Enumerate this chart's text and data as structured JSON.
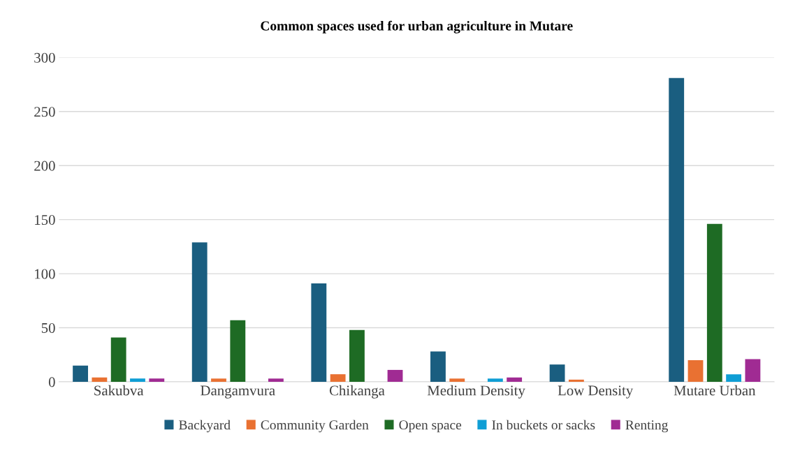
{
  "chart_data": {
    "type": "bar",
    "title": "Common spaces used for urban agriculture in Mutare",
    "categories": [
      "Sakubva",
      "Dangamvura",
      "Chikanga",
      "Medium Density",
      "Low Density",
      "Mutare Urban"
    ],
    "series": [
      {
        "name": "Backyard",
        "color": "#1a5e80",
        "values": [
          15,
          129,
          91,
          28,
          16,
          281
        ]
      },
      {
        "name": "Community Garden",
        "color": "#e97132",
        "values": [
          4,
          3,
          7,
          3,
          2,
          20
        ]
      },
      {
        "name": "Open space",
        "color": "#1e6b24",
        "values": [
          41,
          57,
          48,
          0,
          0,
          146
        ]
      },
      {
        "name": "In buckets or sacks",
        "color": "#0f9ed5",
        "values": [
          3,
          0,
          0,
          3,
          0,
          7
        ]
      },
      {
        "name": "Renting",
        "color": "#a02b93",
        "values": [
          3,
          3,
          11,
          4,
          0,
          21
        ]
      }
    ],
    "ylim": [
      0,
      300
    ],
    "yticks": [
      0,
      50,
      100,
      150,
      200,
      250,
      300
    ],
    "grid": "y",
    "legend": "bottom"
  }
}
